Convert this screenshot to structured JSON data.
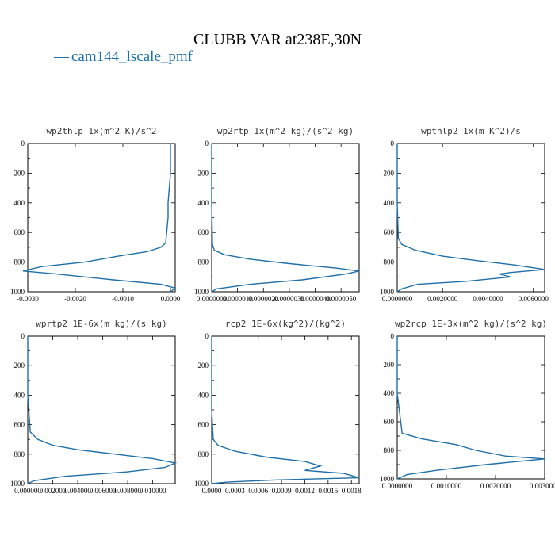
{
  "figure_title": "CLUBB VAR at238E,30N",
  "legend": {
    "marker": "—",
    "label": "cam144_lscale_pmf",
    "color": "#1f6fa8"
  },
  "chart_data": [
    {
      "type": "line",
      "title": "wp2thlp  1x(m^2 K)/s^2",
      "xlim": [
        -0.003,
        0.0001
      ],
      "ylim": [
        1000,
        0
      ],
      "x_ticks": [
        -0.003,
        -0.002,
        -0.001,
        0.0
      ],
      "x_tick_labels": [
        "-0.0030",
        "-0.0020",
        "-0.0010",
        "0.0000"
      ],
      "y_ticks": [
        0,
        200,
        400,
        600,
        800,
        1000
      ],
      "y_tick_labels": [
        "0",
        "200",
        "400",
        "600",
        "800",
        "1000"
      ],
      "series": [
        {
          "name": "cam144_lscale_pmf",
          "x": [
            0.0,
            0.0,
            -5e-05,
            -5e-05,
            -0.0001,
            -0.0002,
            -0.0005,
            -0.0011,
            -0.0018,
            -0.0027,
            -0.0031,
            -0.0024,
            -0.0012,
            -0.0002,
            0.0001,
            0.0
          ],
          "p": [
            0,
            200,
            400,
            500,
            670,
            700,
            730,
            760,
            800,
            830,
            860,
            880,
            920,
            950,
            975,
            1000
          ]
        }
      ]
    },
    {
      "type": "line",
      "title": "wp2rtp  1x(m^2 kg)/(s^2 kg)",
      "xlim": [
        0.0,
        5.7e-06
      ],
      "ylim": [
        1000,
        0
      ],
      "x_ticks": [
        0.0,
        1e-06,
        2e-06,
        3e-06,
        4e-06,
        5e-06
      ],
      "x_tick_labels": [
        "0.0000000",
        "0.0000010",
        "0.0000020",
        "0.0000030",
        "0.0000040",
        "0.0000050"
      ],
      "y_ticks": [
        0,
        200,
        400,
        600,
        800,
        1000
      ],
      "y_tick_labels": [
        "0",
        "200",
        "400",
        "600",
        "800",
        "1000"
      ],
      "series": [
        {
          "name": "cam144_lscale_pmf",
          "x": [
            0.0,
            0.0,
            3e-08,
            1e-07,
            5e-07,
            1.5e-06,
            3e-06,
            4.8e-06,
            5.7e-06,
            5.2e-06,
            3.5e-06,
            1.5e-06,
            2e-07,
            0.0
          ],
          "p": [
            0,
            400,
            680,
            720,
            750,
            780,
            810,
            840,
            860,
            880,
            920,
            950,
            980,
            1000
          ]
        }
      ]
    },
    {
      "type": "line",
      "title": "wpthlp2  1x(m K^2)/s",
      "xlim": [
        0.0,
        0.0065
      ],
      "ylim": [
        1000,
        0
      ],
      "x_ticks": [
        0.0,
        0.002,
        0.004,
        0.006
      ],
      "x_tick_labels": [
        "0.0000000",
        "0.0020000",
        "0.0040000",
        "0.0060000"
      ],
      "y_ticks": [
        0,
        200,
        400,
        600,
        800,
        1000
      ],
      "y_tick_labels": [
        "0",
        "200",
        "400",
        "600",
        "800",
        "1000"
      ],
      "series": [
        {
          "name": "cam144_lscale_pmf",
          "x": [
            0.0,
            0.0,
            5e-05,
            0.0002,
            0.0008,
            0.002,
            0.0035,
            0.0052,
            0.0065,
            0.005,
            0.0045,
            0.005,
            0.003,
            0.0009,
            0.0002,
            0.0
          ],
          "p": [
            0,
            400,
            640,
            680,
            720,
            760,
            790,
            820,
            850,
            870,
            880,
            900,
            930,
            950,
            980,
            1000
          ]
        }
      ]
    },
    {
      "type": "line",
      "title": "wprtp2  1E-6x(m kg)/(s kg)",
      "xlim": [
        0.0,
        0.0118
      ],
      "ylim": [
        1000,
        0
      ],
      "x_ticks": [
        0.0,
        0.002,
        0.004,
        0.006,
        0.008,
        0.01
      ],
      "x_tick_labels": [
        "0.000000",
        "0.002000",
        "0.004000",
        "0.006000",
        "0.008000",
        "0.010000"
      ],
      "y_ticks": [
        0,
        200,
        400,
        600,
        800,
        1000
      ],
      "y_tick_labels": [
        "0",
        "200",
        "400",
        "600",
        "800",
        "1000"
      ],
      "series": [
        {
          "name": "cam144_lscale_pmf",
          "x": [
            0.0,
            0.0,
            0.0002,
            0.0008,
            0.002,
            0.004,
            0.007,
            0.01,
            0.0118,
            0.011,
            0.008,
            0.003,
            0.0005,
            0.0
          ],
          "p": [
            0,
            400,
            650,
            700,
            740,
            770,
            800,
            830,
            860,
            890,
            920,
            950,
            980,
            1000
          ]
        }
      ]
    },
    {
      "type": "line",
      "title": "rcp2  1E-6x(kg^2)/(kg^2)",
      "xlim": [
        0.0,
        0.0019
      ],
      "ylim": [
        1000,
        0
      ],
      "x_ticks": [
        0.0,
        0.0003,
        0.0006,
        0.0009,
        0.0012,
        0.0015,
        0.0018
      ],
      "x_tick_labels": [
        "0.0000",
        "0.0003",
        "0.0006",
        "0.0009",
        "0.0012",
        "0.0015",
        "0.0018"
      ],
      "y_ticks": [
        0,
        200,
        400,
        600,
        800,
        1000
      ],
      "y_tick_labels": [
        "0",
        "200",
        "400",
        "600",
        "800",
        "1000"
      ],
      "series": [
        {
          "name": "cam144_lscale_pmf",
          "x": [
            0.0,
            0.0,
            2e-05,
            8e-05,
            0.0003,
            0.0007,
            0.0012,
            0.0014,
            0.0012,
            0.0017,
            0.0019,
            0.0008,
            0.0002,
            0.0
          ],
          "p": [
            0,
            500,
            700,
            740,
            780,
            820,
            850,
            880,
            910,
            930,
            960,
            975,
            990,
            1000
          ]
        }
      ]
    },
    {
      "type": "line",
      "title": "wp2rcp  1E-3x(m^2 kg)/(s^2 kg)",
      "xlim": [
        0.0,
        0.003
      ],
      "ylim": [
        1000,
        0
      ],
      "x_ticks": [
        0.0,
        0.001,
        0.002,
        0.003
      ],
      "x_tick_labels": [
        "0.0000000",
        "0.0010000",
        "0.0020000",
        "0.0030000"
      ],
      "y_ticks": [
        0,
        200,
        400,
        600,
        800,
        1000
      ],
      "y_tick_labels": [
        "0",
        "200",
        "400",
        "600",
        "800",
        "1000"
      ],
      "series": [
        {
          "name": "cam144_lscale_pmf",
          "x": [
            0.0,
            0.0,
            0.0001,
            0.0005,
            0.0012,
            0.0016,
            0.0022,
            0.003,
            0.0018,
            0.0008,
            0.0002,
            0.0
          ],
          "p": [
            0,
            400,
            680,
            720,
            760,
            800,
            840,
            860,
            900,
            940,
            970,
            1000
          ]
        }
      ]
    }
  ]
}
